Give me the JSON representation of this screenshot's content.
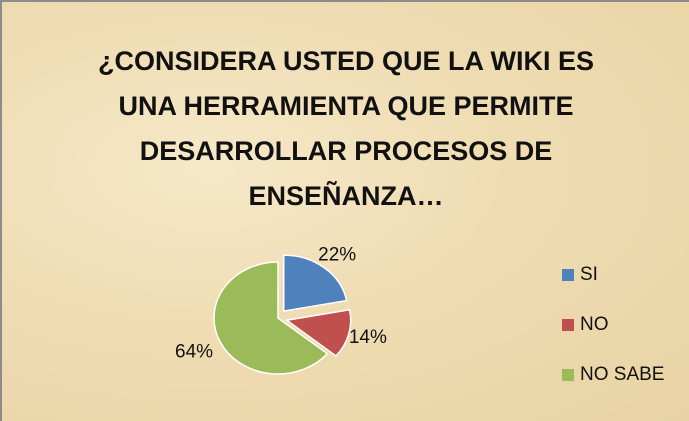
{
  "chart_data": {
    "type": "pie",
    "title": "¿CONSIDERA USTED QUE LA WIKI ES UNA HERRAMIENTA QUE PERMITE DESARROLLAR PROCESOS DE ENSEÑANZA…",
    "categories": [
      "SI",
      "NO",
      "NO SABE"
    ],
    "values": [
      22,
      14,
      64
    ],
    "value_labels": [
      "22%",
      "14%",
      "64%"
    ],
    "colors": [
      "#4f81bd",
      "#c0504d",
      "#9bbb59"
    ],
    "legend": "right"
  }
}
